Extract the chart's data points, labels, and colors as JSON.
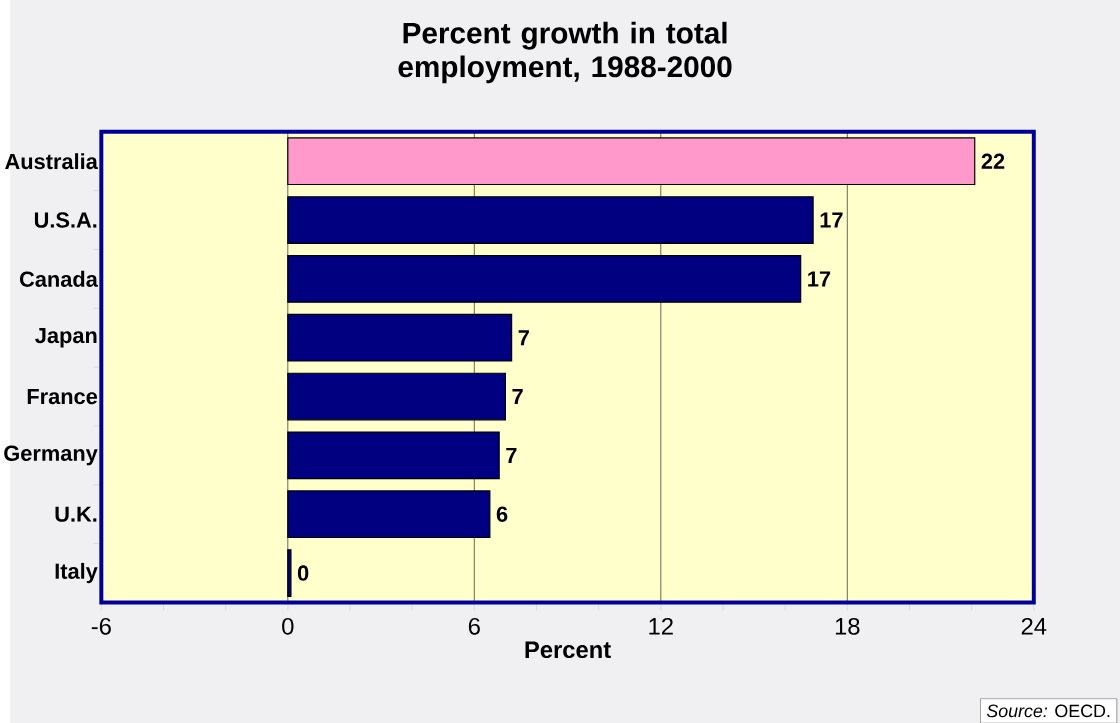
{
  "chart_data": {
    "type": "bar",
    "orientation": "horizontal",
    "title": "Percent growth in total employment, 1988-2000",
    "categories": [
      "Australia",
      "U.S.A.",
      "Canada",
      "Japan",
      "France",
      "Germany",
      "U.K.",
      "Italy"
    ],
    "values": [
      22.1,
      16.9,
      16.5,
      7.2,
      7.0,
      6.8,
      6.5,
      0.1
    ],
    "value_labels": [
      "22",
      "17",
      "17",
      "7",
      "7",
      "7",
      "6",
      "0"
    ],
    "colors": [
      "#ff99cc",
      "#000080",
      "#000080",
      "#000080",
      "#000080",
      "#000080",
      "#000080",
      "#000080"
    ],
    "xlabel": "Percent",
    "xlim": [
      -6,
      24
    ],
    "xticks": [
      -6,
      {
        "value": -4,
        "label": null
      },
      {
        "value": -2,
        "label": null
      },
      0,
      {
        "value": 2,
        "label": null
      },
      {
        "value": 4,
        "label": null
      },
      6,
      {
        "value": 8,
        "label": null
      },
      {
        "value": 10,
        "label": null
      },
      12,
      {
        "value": 14,
        "label": null
      },
      {
        "value": 16,
        "label": null
      },
      18,
      {
        "value": 20,
        "label": null
      },
      {
        "value": 22,
        "label": null
      },
      24
    ],
    "grid": "x",
    "annotations": [
      "*Source:* OECD."
    ]
  }
}
